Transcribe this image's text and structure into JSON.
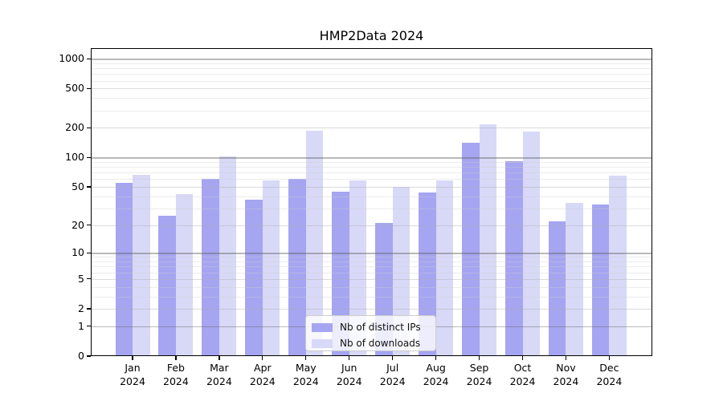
{
  "title": "HMP2Data 2024",
  "chart_data": {
    "type": "bar",
    "title": "HMP2Data 2024",
    "xlabel": "",
    "ylabel": "",
    "y_scale": "log1p",
    "ylim": [
      0,
      1280
    ],
    "grid": true,
    "legend_position": "lower center",
    "y_ticks": [
      0,
      1,
      2,
      5,
      10,
      20,
      50,
      100,
      200,
      500,
      1000
    ],
    "decade_ticks": [
      1,
      10,
      100,
      1000
    ],
    "categories": [
      "Jan 2024",
      "Feb 2024",
      "Mar 2024",
      "Apr 2024",
      "May 2024",
      "Jun 2024",
      "Jul 2024",
      "Aug 2024",
      "Sep 2024",
      "Oct 2024",
      "Nov 2024",
      "Dec 2024"
    ],
    "series": [
      {
        "name": "Nb of distinct IPs",
        "color": "#a5a5f1",
        "values": [
          55,
          25,
          61,
          37,
          61,
          45,
          21,
          44,
          140,
          92,
          22,
          33
        ]
      },
      {
        "name": "Nb of downloads",
        "color": "#d8d8f7",
        "values": [
          66,
          42,
          103,
          58,
          188,
          58,
          50,
          58,
          219,
          183,
          34,
          65
        ]
      }
    ]
  },
  "colors": {
    "ips_bar": "#a5a5f1",
    "downloads_bar": "#d8d8f7",
    "spine": "#000000",
    "background": "#ffffff"
  }
}
